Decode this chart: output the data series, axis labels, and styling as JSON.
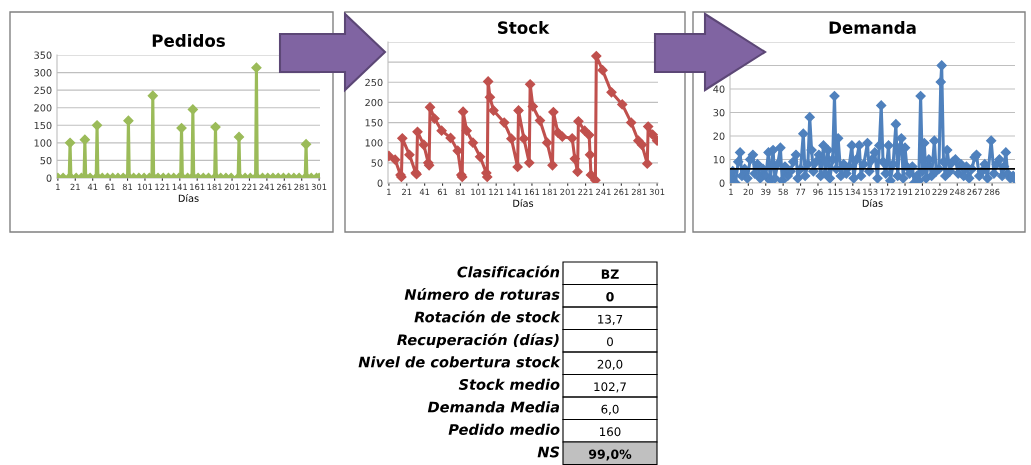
{
  "chart_data": [
    {
      "type": "line",
      "title": "Pedidos",
      "xlabel": "Días",
      "marker": "diamond",
      "line_style": "solid",
      "grid": "y",
      "xlim": [
        0,
        302
      ],
      "xticks": [
        1,
        21,
        41,
        61,
        81,
        101,
        121,
        141,
        161,
        181,
        201,
        221,
        241,
        261,
        281,
        301
      ],
      "ylim": [
        0,
        350
      ],
      "yticks": [
        0,
        50,
        100,
        150,
        200,
        250,
        300,
        350
      ],
      "series": [
        {
          "color": "#9bbb59",
          "x": [
            1,
            7,
            14,
            15,
            16,
            22,
            28,
            31,
            32,
            33,
            38,
            45,
            46,
            47,
            52,
            58,
            64,
            70,
            76,
            81,
            82,
            83,
            88,
            94,
            100,
            106,
            109,
            110,
            111,
            116,
            122,
            128,
            134,
            140,
            142,
            143,
            144,
            150,
            155,
            156,
            157,
            162,
            168,
            174,
            181,
            182,
            183,
            188,
            194,
            200,
            208,
            209,
            210,
            216,
            222,
            228,
            229,
            230,
            236,
            242,
            248,
            254,
            260,
            266,
            272,
            278,
            285,
            286,
            287,
            292,
            298,
            301
          ],
          "values": [
            0,
            0,
            0,
            100,
            0,
            0,
            0,
            0,
            109,
            0,
            0,
            0,
            150,
            0,
            0,
            0,
            0,
            0,
            0,
            0,
            163,
            0,
            0,
            0,
            0,
            0,
            0,
            234,
            0,
            0,
            0,
            0,
            0,
            0,
            0,
            142,
            0,
            0,
            0,
            195,
            0,
            0,
            0,
            0,
            0,
            145,
            0,
            0,
            0,
            0,
            0,
            117,
            0,
            0,
            0,
            0,
            314,
            0,
            0,
            0,
            0,
            0,
            0,
            0,
            0,
            0,
            0,
            96,
            0,
            0,
            0,
            0
          ]
        }
      ]
    },
    {
      "type": "line",
      "title": "Stock",
      "xlabel": "Días",
      "marker": "diamond",
      "line_style": "solid",
      "grid": "y",
      "xlim": [
        0,
        302
      ],
      "xticks": [
        1,
        21,
        41,
        61,
        81,
        101,
        121,
        141,
        161,
        181,
        201,
        221,
        241,
        261,
        281,
        301
      ],
      "ylim": [
        0,
        350
      ],
      "yticks": [
        0,
        50,
        100,
        150,
        200,
        250,
        {
          "value": 300,
          "label": null
        },
        {
          "value": 350,
          "label": null
        }
      ],
      "series": [
        {
          "color": "#c0504d",
          "x": [
            1,
            8,
            14,
            15,
            16,
            24,
            31,
            32,
            33,
            40,
            45,
            46,
            47,
            52,
            60,
            70,
            78,
            82,
            83,
            84,
            88,
            95,
            103,
            110,
            111,
            112,
            114,
            118,
            130,
            138,
            145,
            146,
            152,
            158,
            159,
            162,
            170,
            178,
            184,
            185,
            190,
            195,
            206,
            209,
            212,
            213,
            220,
            225,
            226,
            227,
            232,
            233,
            240,
            250,
            262,
            272,
            280,
            284,
            290,
            291,
            296,
            301
          ],
          "values": [
            67,
            58,
            20,
            15,
            111,
            70,
            25,
            22,
            127,
            95,
            50,
            44,
            188,
            160,
            130,
            112,
            80,
            20,
            15,
            177,
            130,
            100,
            65,
            25,
            15,
            252,
            213,
            180,
            150,
            110,
            40,
            180,
            110,
            50,
            245,
            190,
            155,
            100,
            44,
            176,
            125,
            115,
            111,
            60,
            28,
            153,
            130,
            119,
            70,
            20,
            7,
            315,
            280,
            225,
            195,
            150,
            105,
            95,
            48,
            140,
            120,
            105
          ]
        }
      ]
    },
    {
      "type": "line",
      "title": "Demanda",
      "xlabel": "Días",
      "marker": "diamond",
      "line_style": "solid",
      "grid": "y",
      "xlim": [
        0,
        311
      ],
      "xticks": [
        1,
        20,
        39,
        58,
        77,
        96,
        115,
        134,
        153,
        172,
        191,
        210,
        229,
        248,
        267,
        286
      ],
      "ylim": [
        0,
        60
      ],
      "yticks": [
        0,
        10,
        20,
        30,
        40,
        {
          "value": 50,
          "label": null
        },
        {
          "value": 60,
          "label": null
        }
      ],
      "ref_lines": [
        {
          "axis": "y",
          "value": 6,
          "color": "#000000"
        }
      ],
      "series": [
        {
          "color": "#4f81bd",
          "x": [
            1,
            3,
            6,
            9,
            11,
            13,
            16,
            19,
            22,
            25,
            27,
            30,
            33,
            36,
            39,
            42,
            44,
            47,
            49,
            52,
            55,
            57,
            60,
            63,
            66,
            69,
            72,
            74,
            77,
            80,
            82,
            85,
            87,
            89,
            91,
            94,
            97,
            99,
            102,
            104,
            107,
            109,
            112,
            114,
            116,
            118,
            121,
            124,
            127,
            130,
            133,
            135,
            138,
            141,
            143,
            146,
            150,
            152,
            155,
            158,
            161,
            163,
            165,
            167,
            170,
            173,
            175,
            178,
            181,
            183,
            185,
            187,
            189,
            191,
            193,
            196,
            199,
            201,
            204,
            206,
            208,
            210,
            212,
            214,
            217,
            220,
            223,
            225,
            228,
            230,
            231,
            233,
            235,
            237,
            240,
            243,
            246,
            249,
            252,
            255,
            258,
            261,
            264,
            267,
            269,
            272,
            275,
            278,
            281,
            285,
            288,
            291,
            294,
            297,
            299,
            301,
            303,
            306,
            309,
            310
          ],
          "values": [
            2,
            5,
            0,
            9,
            13,
            3,
            6,
            2,
            10,
            12,
            4,
            8,
            2,
            6,
            3,
            13,
            1,
            14,
            2,
            8,
            15,
            1,
            7,
            3,
            5,
            9,
            12,
            2,
            6,
            21,
            3,
            8,
            28,
            14,
            5,
            9,
            12,
            3,
            16,
            4,
            14,
            2,
            10,
            37,
            6,
            19,
            3,
            8,
            4,
            7,
            16,
            2,
            10,
            16,
            3,
            8,
            17,
            5,
            10,
            13,
            2,
            16,
            33,
            9,
            4,
            16,
            1,
            8,
            25,
            3,
            15,
            19,
            2,
            15,
            7,
            4,
            7,
            0,
            3,
            1,
            37,
            5,
            17,
            2,
            10,
            3,
            18,
            5,
            6,
            43,
            50,
            9,
            3,
            14,
            5,
            9,
            10,
            4,
            8,
            3,
            7,
            2,
            6,
            11,
            12,
            3,
            5,
            8,
            2,
            18,
            4,
            8,
            10,
            3,
            7,
            13,
            4,
            2,
            3,
            2
          ]
        }
      ]
    },
    {
      "type": "other",
      "annotations": [
        "Clasificación",
        "BZ",
        "Número de roturas",
        "0",
        "Rotación de stock",
        "13,7",
        "Recuperación (días)",
        "0",
        "Nivel de cobertura stock",
        "20,0",
        "Stock medio",
        "102,7",
        "Demanda Media",
        "6,0",
        "Pedido medio",
        "160",
        "NS",
        "99,0%"
      ]
    }
  ]
}
